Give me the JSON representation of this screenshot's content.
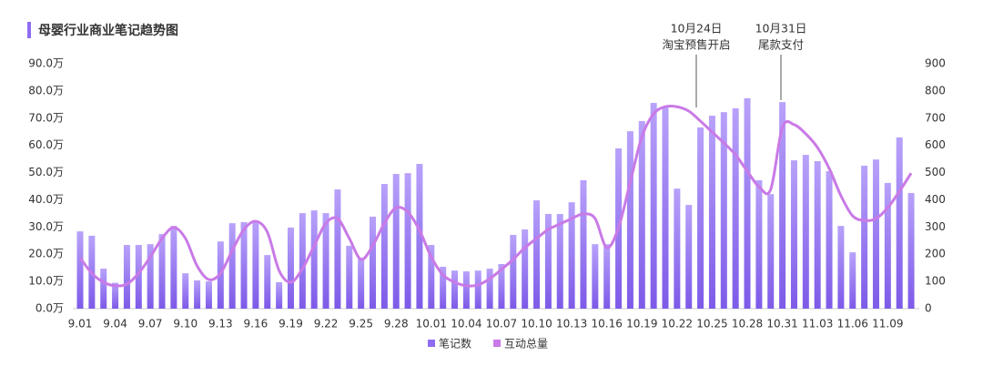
{
  "chart_data": {
    "type": "bar_line",
    "title": "母婴行业商业笔记趋势图",
    "annotations": [
      {
        "lines": [
          "10月24日",
          "淘宝预售开启"
        ]
      },
      {
        "lines": [
          "10月31日",
          "尾款支付"
        ]
      }
    ],
    "categories": [
      "9.01",
      null,
      null,
      "9.04",
      null,
      null,
      "9.07",
      null,
      null,
      "9.10",
      null,
      null,
      "9.13",
      null,
      null,
      "9.16",
      null,
      null,
      "9.19",
      null,
      null,
      "9.22",
      null,
      null,
      "9.25",
      null,
      null,
      "9.28",
      null,
      null,
      "10.01",
      null,
      null,
      "10.04",
      null,
      null,
      "10.07",
      null,
      null,
      "10.10",
      null,
      null,
      "10.13",
      null,
      null,
      "10.16",
      null,
      null,
      "10.19",
      null,
      null,
      "10.22",
      null,
      null,
      "10.25",
      null,
      null,
      "10.28",
      null,
      null,
      "10.31",
      null,
      null,
      "11.03",
      null,
      null,
      "11.06",
      null,
      null,
      "11.09",
      null,
      null
    ],
    "series": [
      {
        "name": "笔记数",
        "type": "bar",
        "color": "#8f6cf2",
        "values": [
          28.4,
          26.8,
          14.7,
          9.5,
          23.4,
          23.4,
          23.7,
          27.4,
          30.4,
          13,
          10.4,
          10,
          24.7,
          31.4,
          31.8,
          31.8,
          19.7,
          9.7,
          29.8,
          35.1,
          36.1,
          35.1,
          43.8,
          23.1,
          18.7,
          33.8,
          45.8,
          49.5,
          49.8,
          53.2,
          23.4,
          15.4,
          14,
          13.7,
          14,
          14.7,
          16.4,
          27.1,
          29.1,
          39.8,
          34.8,
          34.8,
          39.1,
          47.2,
          23.7,
          23.7,
          58.9,
          65.2,
          68.9,
          75.6,
          73.9,
          44.1,
          38.1,
          66.6,
          70.9,
          72.2,
          73.6,
          77.3,
          47.2,
          42.1,
          75.9,
          54.5,
          56.5,
          54.2,
          50.5,
          30.4,
          20.7,
          52.5,
          54.8,
          46.2,
          62.9,
          42.5
        ]
      },
      {
        "name": "互动总量",
        "type": "line",
        "axis": "y2",
        "color": "#c97ae6",
        "values": [
          187,
          130,
          97,
          84,
          90,
          130,
          190,
          258,
          298,
          258,
          157,
          107,
          130,
          214,
          291,
          321,
          281,
          140,
          97,
          147,
          231,
          314,
          331,
          258,
          181,
          231,
          314,
          371,
          355,
          288,
          190,
          124,
          97,
          84,
          87,
          110,
          144,
          181,
          224,
          258,
          291,
          311,
          331,
          348,
          331,
          224,
          298,
          465,
          632,
          716,
          742,
          742,
          726,
          689,
          649,
          609,
          565,
          505,
          448,
          438,
          666,
          676,
          642,
          592,
          515,
          415,
          341,
          324,
          331,
          371,
          431,
          498
        ]
      }
    ],
    "ylim": [
      0,
      90
    ],
    "yticks": [
      {
        "value": 0,
        "label": "0.0万"
      },
      {
        "value": 10,
        "label": "10.0万"
      },
      {
        "value": 20,
        "label": "20.0万"
      },
      {
        "value": 30,
        "label": "30.0万"
      },
      {
        "value": 40,
        "label": "40.0万"
      },
      {
        "value": 50,
        "label": "50.0万"
      },
      {
        "value": 60,
        "label": "60.0万"
      },
      {
        "value": 70,
        "label": "70.0万"
      },
      {
        "value": 80,
        "label": "80.0万"
      },
      {
        "value": 90,
        "label": "90.0万"
      }
    ],
    "y2lim": [
      0,
      900
    ],
    "y2ticks": [
      0,
      100,
      200,
      300,
      400,
      500,
      600,
      700,
      800,
      900
    ],
    "legend": "bottom"
  }
}
